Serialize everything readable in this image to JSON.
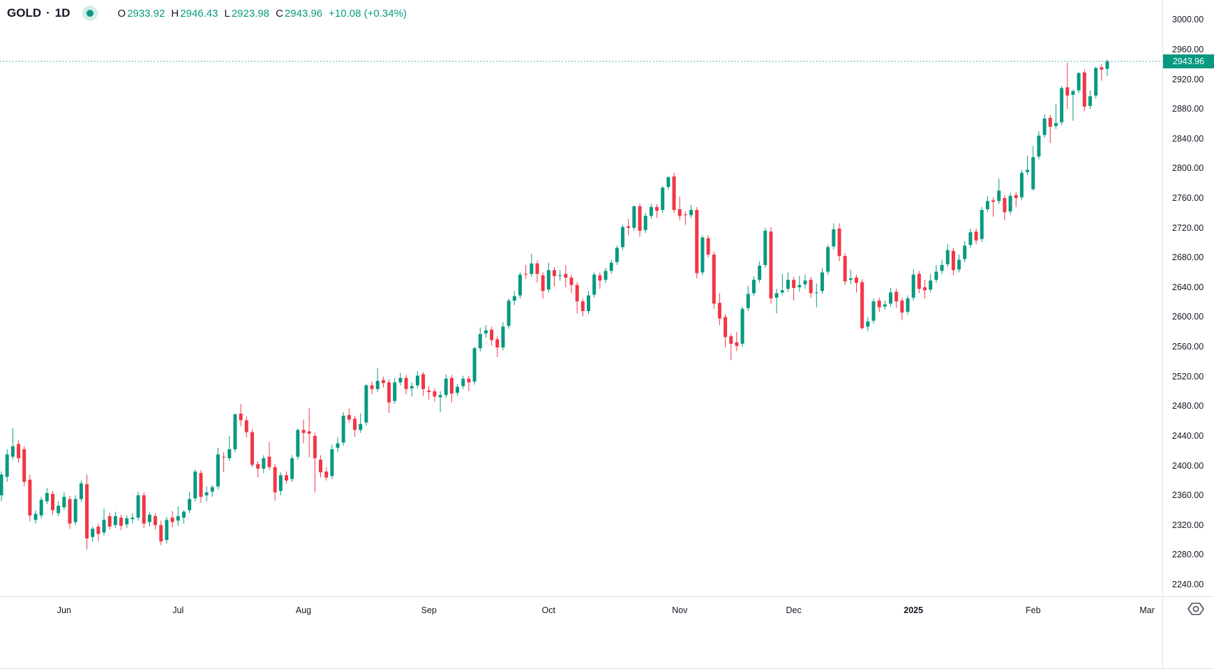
{
  "header": {
    "symbol": "GOLD",
    "separator": "·",
    "interval": "1D",
    "ohlc": {
      "o_label": "O",
      "o": "2933.92",
      "h_label": "H",
      "h": "2946.43",
      "l_label": "L",
      "l": "2923.98",
      "c_label": "C",
      "c": "2943.96",
      "change": "+10.08 (+0.34%)"
    }
  },
  "colors": {
    "up": "#089981",
    "down": "#F23645",
    "accent": "#089981",
    "badge_text": "#FFFFFF",
    "axis_text": "#131722",
    "separator": "#E0E3EB",
    "icon": "#4A4E59",
    "status_ring": "#D2EDE6"
  },
  "price_axis": {
    "last_price_label": "2943.96",
    "labels": [
      "3000.00",
      "2960.00",
      "2920.00",
      "2880.00",
      "2840.00",
      "2800.00",
      "2760.00",
      "2720.00",
      "2680.00",
      "2640.00",
      "2600.00",
      "2560.00",
      "2520.00",
      "2480.00",
      "2440.00",
      "2400.00",
      "2360.00",
      "2320.00",
      "2280.00",
      "2240.00"
    ]
  },
  "time_axis": {
    "ticks": [
      {
        "label": "Jun",
        "bar_index": 11,
        "bold": false
      },
      {
        "label": "Jul",
        "bar_index": 31,
        "bold": false
      },
      {
        "label": "Aug",
        "bar_index": 53,
        "bold": false
      },
      {
        "label": "Sep",
        "bar_index": 75,
        "bold": false
      },
      {
        "label": "Oct",
        "bar_index": 96,
        "bold": false
      },
      {
        "label": "Nov",
        "bar_index": 119,
        "bold": false
      },
      {
        "label": "Dec",
        "bar_index": 139,
        "bold": false
      },
      {
        "label": "2025",
        "bar_index": 160,
        "bold": true
      },
      {
        "label": "Feb",
        "bar_index": 181,
        "bold": false
      },
      {
        "label": "Mar",
        "bar_index": 201,
        "bold": false
      }
    ],
    "settings_icon": "hexagon-settings-icon"
  },
  "chart_data": {
    "type": "candlestick",
    "title": "GOLD · 1D",
    "symbol": "GOLD",
    "interval": "1D",
    "ohlc_current": {
      "open": 2933.92,
      "high": 2946.43,
      "low": 2923.98,
      "close": 2943.96,
      "change": 10.08,
      "change_pct": 0.34
    },
    "price_line": 2943.96,
    "y_axis": {
      "label_min": 2240,
      "label_max": 3000,
      "step": 40,
      "visible_range": [
        2224,
        3030
      ],
      "grid": false
    },
    "x_axis": {
      "months": [
        "Jun",
        "Jul",
        "Aug",
        "Sep",
        "Oct",
        "Nov",
        "Dec",
        "2025",
        "Feb",
        "Mar"
      ],
      "legend_position": "top-left"
    },
    "bars": [
      [
        2360,
        2392,
        2352,
        2388
      ],
      [
        2385,
        2422,
        2378,
        2415
      ],
      [
        2412,
        2450,
        2408,
        2426
      ],
      [
        2429,
        2434,
        2404,
        2410
      ],
      [
        2422,
        2426,
        2372,
        2378
      ],
      [
        2381,
        2388,
        2325,
        2333
      ],
      [
        2327,
        2340,
        2322,
        2335
      ],
      [
        2333,
        2358,
        2329,
        2354
      ],
      [
        2352,
        2370,
        2348,
        2363
      ],
      [
        2362,
        2366,
        2334,
        2340
      ],
      [
        2336,
        2352,
        2332,
        2346
      ],
      [
        2344,
        2364,
        2340,
        2358
      ],
      [
        2355,
        2359,
        2315,
        2322
      ],
      [
        2324,
        2360,
        2320,
        2355
      ],
      [
        2355,
        2380,
        2351,
        2376
      ],
      [
        2375,
        2388,
        2287,
        2302
      ],
      [
        2304,
        2318,
        2298,
        2315
      ],
      [
        2318,
        2322,
        2298,
        2308
      ],
      [
        2310,
        2342,
        2306,
        2327
      ],
      [
        2332,
        2336,
        2314,
        2318
      ],
      [
        2320,
        2338,
        2316,
        2332
      ],
      [
        2330,
        2334,
        2313,
        2319
      ],
      [
        2321,
        2333,
        2316,
        2329
      ],
      [
        2328,
        2336,
        2322,
        2330
      ],
      [
        2330,
        2365,
        2326,
        2360
      ],
      [
        2360,
        2364,
        2316,
        2322
      ],
      [
        2324,
        2338,
        2318,
        2334
      ],
      [
        2332,
        2336,
        2314,
        2320
      ],
      [
        2320,
        2326,
        2293,
        2298
      ],
      [
        2300,
        2331,
        2295,
        2327
      ],
      [
        2330,
        2339,
        2317,
        2324
      ],
      [
        2326,
        2345,
        2319,
        2332
      ],
      [
        2330,
        2340,
        2322,
        2338
      ],
      [
        2340,
        2365,
        2336,
        2355
      ],
      [
        2356,
        2395,
        2352,
        2392
      ],
      [
        2390,
        2394,
        2350,
        2358
      ],
      [
        2360,
        2372,
        2352,
        2364
      ],
      [
        2365,
        2374,
        2358,
        2371
      ],
      [
        2372,
        2424,
        2368,
        2415
      ],
      [
        2412,
        2418,
        2391,
        2411
      ],
      [
        2410,
        2440,
        2406,
        2422
      ],
      [
        2422,
        2470,
        2418,
        2469
      ],
      [
        2470,
        2483,
        2453,
        2461
      ],
      [
        2461,
        2466,
        2438,
        2445
      ],
      [
        2445,
        2449,
        2398,
        2401
      ],
      [
        2402,
        2406,
        2384,
        2396
      ],
      [
        2396,
        2414,
        2390,
        2410
      ],
      [
        2412,
        2432,
        2394,
        2398
      ],
      [
        2398,
        2402,
        2353,
        2364
      ],
      [
        2366,
        2391,
        2360,
        2387
      ],
      [
        2387,
        2392,
        2376,
        2380
      ],
      [
        2382,
        2414,
        2378,
        2410
      ],
      [
        2412,
        2450,
        2408,
        2448
      ],
      [
        2448,
        2462,
        2430,
        2444
      ],
      [
        2446,
        2477,
        2411,
        2443
      ],
      [
        2440,
        2444,
        2364,
        2410
      ],
      [
        2408,
        2414,
        2384,
        2391
      ],
      [
        2392,
        2398,
        2380,
        2384
      ],
      [
        2386,
        2428,
        2382,
        2422
      ],
      [
        2424,
        2438,
        2418,
        2430
      ],
      [
        2431,
        2472,
        2427,
        2467
      ],
      [
        2468,
        2477,
        2458,
        2462
      ],
      [
        2463,
        2467,
        2439,
        2448
      ],
      [
        2448,
        2470,
        2444,
        2456
      ],
      [
        2458,
        2510,
        2454,
        2508
      ],
      [
        2508,
        2513,
        2496,
        2503
      ],
      [
        2503,
        2531,
        2499,
        2514
      ],
      [
        2515,
        2520,
        2505,
        2511
      ],
      [
        2512,
        2516,
        2471,
        2485
      ],
      [
        2487,
        2518,
        2483,
        2512
      ],
      [
        2512,
        2525,
        2508,
        2518
      ],
      [
        2518,
        2522,
        2496,
        2503
      ],
      [
        2504,
        2512,
        2493,
        2507
      ],
      [
        2508,
        2527,
        2504,
        2521
      ],
      [
        2523,
        2526,
        2494,
        2503
      ],
      [
        2501,
        2507,
        2489,
        2499
      ],
      [
        2500,
        2504,
        2486,
        2493
      ],
      [
        2492,
        2500,
        2472,
        2495
      ],
      [
        2495,
        2523,
        2491,
        2517
      ],
      [
        2518,
        2522,
        2485,
        2497
      ],
      [
        2498,
        2510,
        2494,
        2506
      ],
      [
        2507,
        2521,
        2503,
        2517
      ],
      [
        2517,
        2521,
        2500,
        2512
      ],
      [
        2513,
        2560,
        2509,
        2558
      ],
      [
        2558,
        2586,
        2554,
        2577
      ],
      [
        2578,
        2589,
        2572,
        2582
      ],
      [
        2583,
        2587,
        2562,
        2569
      ],
      [
        2570,
        2574,
        2546,
        2559
      ],
      [
        2559,
        2593,
        2555,
        2587
      ],
      [
        2588,
        2625,
        2584,
        2622
      ],
      [
        2622,
        2635,
        2616,
        2628
      ],
      [
        2629,
        2660,
        2625,
        2657
      ],
      [
        2658,
        2670,
        2651,
        2657
      ],
      [
        2658,
        2685,
        2654,
        2672
      ],
      [
        2672,
        2676,
        2646,
        2658
      ],
      [
        2656,
        2660,
        2625,
        2635
      ],
      [
        2637,
        2673,
        2633,
        2663
      ],
      [
        2663,
        2667,
        2641,
        2655
      ],
      [
        2655,
        2663,
        2649,
        2656
      ],
      [
        2658,
        2670,
        2640,
        2653
      ],
      [
        2653,
        2657,
        2632,
        2643
      ],
      [
        2643,
        2647,
        2605,
        2621
      ],
      [
        2621,
        2625,
        2601,
        2608
      ],
      [
        2608,
        2635,
        2604,
        2629
      ],
      [
        2630,
        2660,
        2626,
        2657
      ],
      [
        2656,
        2660,
        2638,
        2649
      ],
      [
        2650,
        2666,
        2646,
        2662
      ],
      [
        2662,
        2677,
        2658,
        2673
      ],
      [
        2674,
        2696,
        2670,
        2693
      ],
      [
        2694,
        2724,
        2690,
        2721
      ],
      [
        2722,
        2732,
        2710,
        2720
      ],
      [
        2720,
        2750,
        2716,
        2749
      ],
      [
        2749,
        2753,
        2708,
        2716
      ],
      [
        2717,
        2740,
        2713,
        2736
      ],
      [
        2736,
        2752,
        2732,
        2748
      ],
      [
        2748,
        2752,
        2733,
        2743
      ],
      [
        2744,
        2776,
        2740,
        2774
      ],
      [
        2775,
        2790,
        2771,
        2788
      ],
      [
        2789,
        2794,
        2740,
        2744
      ],
      [
        2745,
        2762,
        2730,
        2736
      ],
      [
        2738,
        2742,
        2724,
        2737
      ],
      [
        2737,
        2751,
        2733,
        2744
      ],
      [
        2744,
        2748,
        2652,
        2659
      ],
      [
        2660,
        2710,
        2656,
        2707
      ],
      [
        2706,
        2710,
        2680,
        2684
      ],
      [
        2684,
        2688,
        2611,
        2618
      ],
      [
        2619,
        2632,
        2589,
        2598
      ],
      [
        2600,
        2604,
        2559,
        2573
      ],
      [
        2574,
        2578,
        2542,
        2564
      ],
      [
        2566,
        2580,
        2554,
        2561
      ],
      [
        2564,
        2614,
        2560,
        2611
      ],
      [
        2612,
        2642,
        2608,
        2631
      ],
      [
        2632,
        2655,
        2628,
        2650
      ],
      [
        2650,
        2675,
        2646,
        2669
      ],
      [
        2670,
        2720,
        2666,
        2716
      ],
      [
        2715,
        2721,
        2618,
        2625
      ],
      [
        2626,
        2638,
        2605,
        2632
      ],
      [
        2633,
        2658,
        2629,
        2636
      ],
      [
        2638,
        2660,
        2634,
        2650
      ],
      [
        2650,
        2654,
        2622,
        2639
      ],
      [
        2640,
        2655,
        2634,
        2643
      ],
      [
        2644,
        2657,
        2638,
        2649
      ],
      [
        2650,
        2654,
        2626,
        2632
      ],
      [
        2633,
        2645,
        2613,
        2633
      ],
      [
        2635,
        2666,
        2631,
        2660
      ],
      [
        2661,
        2697,
        2657,
        2694
      ],
      [
        2695,
        2726,
        2691,
        2718
      ],
      [
        2719,
        2726,
        2675,
        2682
      ],
      [
        2682,
        2686,
        2643,
        2648
      ],
      [
        2650,
        2664,
        2644,
        2652
      ],
      [
        2653,
        2657,
        2633,
        2646
      ],
      [
        2647,
        2651,
        2583,
        2585
      ],
      [
        2587,
        2600,
        2581,
        2594
      ],
      [
        2595,
        2625,
        2591,
        2621
      ],
      [
        2622,
        2626,
        2607,
        2613
      ],
      [
        2614,
        2622,
        2610,
        2617
      ],
      [
        2618,
        2639,
        2614,
        2633
      ],
      [
        2634,
        2638,
        2612,
        2621
      ],
      [
        2622,
        2626,
        2596,
        2606
      ],
      [
        2607,
        2629,
        2603,
        2625
      ],
      [
        2626,
        2664,
        2622,
        2657
      ],
      [
        2658,
        2662,
        2632,
        2638
      ],
      [
        2640,
        2650,
        2625,
        2636
      ],
      [
        2637,
        2658,
        2633,
        2649
      ],
      [
        2650,
        2670,
        2646,
        2661
      ],
      [
        2662,
        2677,
        2658,
        2670
      ],
      [
        2671,
        2698,
        2667,
        2690
      ],
      [
        2689,
        2693,
        2656,
        2663
      ],
      [
        2664,
        2684,
        2660,
        2677
      ],
      [
        2678,
        2702,
        2674,
        2696
      ],
      [
        2697,
        2719,
        2693,
        2714
      ],
      [
        2715,
        2719,
        2698,
        2703
      ],
      [
        2705,
        2748,
        2701,
        2744
      ],
      [
        2745,
        2763,
        2741,
        2756
      ],
      [
        2757,
        2761,
        2735,
        2755
      ],
      [
        2756,
        2786,
        2752,
        2770
      ],
      [
        2760,
        2764,
        2730,
        2741
      ],
      [
        2742,
        2767,
        2738,
        2763
      ],
      [
        2764,
        2768,
        2748,
        2760
      ],
      [
        2761,
        2798,
        2757,
        2794
      ],
      [
        2795,
        2817,
        2791,
        2798
      ],
      [
        2772,
        2830,
        2770,
        2815
      ],
      [
        2816,
        2850,
        2812,
        2844
      ],
      [
        2845,
        2873,
        2841,
        2867
      ],
      [
        2868,
        2872,
        2834,
        2856
      ],
      [
        2857,
        2886,
        2853,
        2861
      ],
      [
        2862,
        2911,
        2858,
        2908
      ],
      [
        2909,
        2942,
        2880,
        2898
      ],
      [
        2899,
        2906,
        2864,
        2904
      ],
      [
        2905,
        2930,
        2901,
        2928
      ],
      [
        2929,
        2933,
        2877,
        2883
      ],
      [
        2884,
        2905,
        2880,
        2897
      ],
      [
        2898,
        2937,
        2894,
        2935
      ],
      [
        2936,
        2940,
        2918,
        2933
      ],
      [
        2933.92,
        2946.43,
        2923.98,
        2943.96
      ]
    ]
  }
}
